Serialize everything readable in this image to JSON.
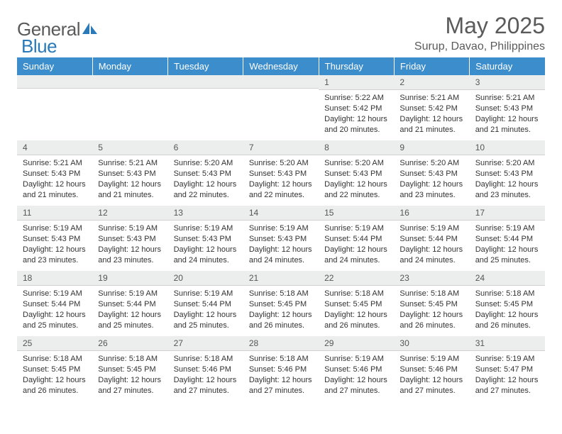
{
  "logo": {
    "text1": "General",
    "text2": "Blue"
  },
  "title": "May 2025",
  "location": "Surup, Davao, Philippines",
  "colors": {
    "header_bg": "#3c8dcc",
    "header_text": "#ffffff",
    "daynum_bg": "#eceeee",
    "body_text": "#333333",
    "title_text": "#5a5a5a",
    "logo_blue": "#2a7ab9"
  },
  "weekdays": [
    "Sunday",
    "Monday",
    "Tuesday",
    "Wednesday",
    "Thursday",
    "Friday",
    "Saturday"
  ],
  "first_day_index": 4,
  "days": [
    {
      "n": 1,
      "sunrise": "5:22 AM",
      "sunset": "5:42 PM",
      "daylight": "12 hours and 20 minutes."
    },
    {
      "n": 2,
      "sunrise": "5:21 AM",
      "sunset": "5:42 PM",
      "daylight": "12 hours and 21 minutes."
    },
    {
      "n": 3,
      "sunrise": "5:21 AM",
      "sunset": "5:43 PM",
      "daylight": "12 hours and 21 minutes."
    },
    {
      "n": 4,
      "sunrise": "5:21 AM",
      "sunset": "5:43 PM",
      "daylight": "12 hours and 21 minutes."
    },
    {
      "n": 5,
      "sunrise": "5:21 AM",
      "sunset": "5:43 PM",
      "daylight": "12 hours and 21 minutes."
    },
    {
      "n": 6,
      "sunrise": "5:20 AM",
      "sunset": "5:43 PM",
      "daylight": "12 hours and 22 minutes."
    },
    {
      "n": 7,
      "sunrise": "5:20 AM",
      "sunset": "5:43 PM",
      "daylight": "12 hours and 22 minutes."
    },
    {
      "n": 8,
      "sunrise": "5:20 AM",
      "sunset": "5:43 PM",
      "daylight": "12 hours and 22 minutes."
    },
    {
      "n": 9,
      "sunrise": "5:20 AM",
      "sunset": "5:43 PM",
      "daylight": "12 hours and 23 minutes."
    },
    {
      "n": 10,
      "sunrise": "5:20 AM",
      "sunset": "5:43 PM",
      "daylight": "12 hours and 23 minutes."
    },
    {
      "n": 11,
      "sunrise": "5:19 AM",
      "sunset": "5:43 PM",
      "daylight": "12 hours and 23 minutes."
    },
    {
      "n": 12,
      "sunrise": "5:19 AM",
      "sunset": "5:43 PM",
      "daylight": "12 hours and 23 minutes."
    },
    {
      "n": 13,
      "sunrise": "5:19 AM",
      "sunset": "5:43 PM",
      "daylight": "12 hours and 24 minutes."
    },
    {
      "n": 14,
      "sunrise": "5:19 AM",
      "sunset": "5:43 PM",
      "daylight": "12 hours and 24 minutes."
    },
    {
      "n": 15,
      "sunrise": "5:19 AM",
      "sunset": "5:44 PM",
      "daylight": "12 hours and 24 minutes."
    },
    {
      "n": 16,
      "sunrise": "5:19 AM",
      "sunset": "5:44 PM",
      "daylight": "12 hours and 24 minutes."
    },
    {
      "n": 17,
      "sunrise": "5:19 AM",
      "sunset": "5:44 PM",
      "daylight": "12 hours and 25 minutes."
    },
    {
      "n": 18,
      "sunrise": "5:19 AM",
      "sunset": "5:44 PM",
      "daylight": "12 hours and 25 minutes."
    },
    {
      "n": 19,
      "sunrise": "5:19 AM",
      "sunset": "5:44 PM",
      "daylight": "12 hours and 25 minutes."
    },
    {
      "n": 20,
      "sunrise": "5:19 AM",
      "sunset": "5:44 PM",
      "daylight": "12 hours and 25 minutes."
    },
    {
      "n": 21,
      "sunrise": "5:18 AM",
      "sunset": "5:45 PM",
      "daylight": "12 hours and 26 minutes."
    },
    {
      "n": 22,
      "sunrise": "5:18 AM",
      "sunset": "5:45 PM",
      "daylight": "12 hours and 26 minutes."
    },
    {
      "n": 23,
      "sunrise": "5:18 AM",
      "sunset": "5:45 PM",
      "daylight": "12 hours and 26 minutes."
    },
    {
      "n": 24,
      "sunrise": "5:18 AM",
      "sunset": "5:45 PM",
      "daylight": "12 hours and 26 minutes."
    },
    {
      "n": 25,
      "sunrise": "5:18 AM",
      "sunset": "5:45 PM",
      "daylight": "12 hours and 26 minutes."
    },
    {
      "n": 26,
      "sunrise": "5:18 AM",
      "sunset": "5:45 PM",
      "daylight": "12 hours and 27 minutes."
    },
    {
      "n": 27,
      "sunrise": "5:18 AM",
      "sunset": "5:46 PM",
      "daylight": "12 hours and 27 minutes."
    },
    {
      "n": 28,
      "sunrise": "5:18 AM",
      "sunset": "5:46 PM",
      "daylight": "12 hours and 27 minutes."
    },
    {
      "n": 29,
      "sunrise": "5:19 AM",
      "sunset": "5:46 PM",
      "daylight": "12 hours and 27 minutes."
    },
    {
      "n": 30,
      "sunrise": "5:19 AM",
      "sunset": "5:46 PM",
      "daylight": "12 hours and 27 minutes."
    },
    {
      "n": 31,
      "sunrise": "5:19 AM",
      "sunset": "5:47 PM",
      "daylight": "12 hours and 27 minutes."
    }
  ],
  "labels": {
    "sunrise": "Sunrise: ",
    "sunset": "Sunset: ",
    "daylight": "Daylight: "
  }
}
